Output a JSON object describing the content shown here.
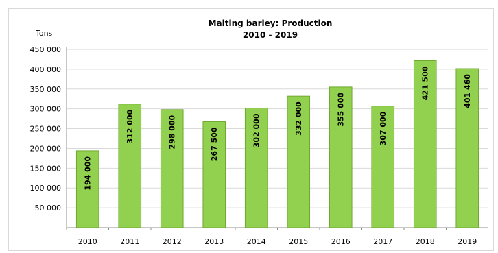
{
  "chart_data": {
    "type": "bar",
    "title": "Malting barley: Production",
    "subtitle": "2010 - 2019",
    "ylabel": "Tons",
    "xlabel": "",
    "categories": [
      "2010",
      "2011",
      "2012",
      "2013",
      "2014",
      "2015",
      "2016",
      "2017",
      "2018",
      "2019"
    ],
    "values": [
      194000,
      312000,
      298000,
      267500,
      302000,
      332000,
      355000,
      307000,
      421500,
      401460
    ],
    "value_labels": [
      "194 000",
      "312 000",
      "298 000",
      "267 500",
      "302 000",
      "332 000",
      "355 000",
      "307 000",
      "421 500",
      "401 460"
    ],
    "ylim": [
      0,
      450000
    ],
    "yticks": [
      50000,
      100000,
      150000,
      200000,
      250000,
      300000,
      350000,
      400000,
      450000
    ],
    "ytick_labels": [
      "50 000",
      "100 000",
      "150 000",
      "200 000",
      "250 000",
      "300 000",
      "350 000",
      "400 000",
      "450 000"
    ],
    "grid": true,
    "legend": "none",
    "bar_color": "#92d050",
    "bar_edge_color": "#70a830",
    "grid_color": "#d9d9d9"
  }
}
